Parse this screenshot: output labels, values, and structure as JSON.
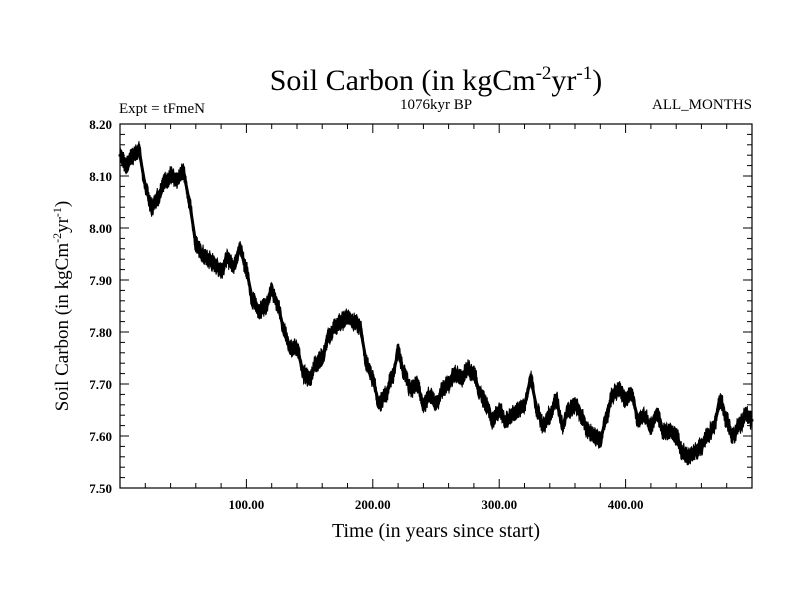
{
  "chart_data": {
    "type": "line",
    "title": {
      "main": "Soil Carbon (in kgCm",
      "sup1": "-2",
      "mid": "yr",
      "sup2": "-1",
      "close": ")"
    },
    "subtitle_left": "Expt = tFmeN",
    "subtitle_center": "1076kyr BP",
    "subtitle_right": "ALL_MONTHS",
    "xlabel": "Time (in years since start)",
    "ylabel": {
      "main": "Soil Carbon (in kgCm",
      "sup1": "-2",
      "mid": "yr",
      "sup2": "-1",
      "close": ")"
    },
    "xlim": [
      0,
      500
    ],
    "ylim": [
      7.5,
      8.2
    ],
    "xticks": [
      100,
      200,
      300,
      400
    ],
    "xtick_labels": [
      "100.00",
      "200.00",
      "300.00",
      "400.00"
    ],
    "yticks": [
      7.5,
      7.6,
      7.7,
      7.8,
      7.9,
      8.0,
      8.1,
      8.2
    ],
    "ytick_labels": [
      "7.50",
      "7.60",
      "7.70",
      "7.80",
      "7.90",
      "8.00",
      "8.10",
      "8.20"
    ],
    "noise_band": 0.012,
    "series": [
      {
        "name": "Soil Carbon",
        "color": "#000000",
        "x": [
          0,
          5,
          10,
          15,
          20,
          25,
          30,
          35,
          40,
          45,
          50,
          55,
          60,
          65,
          70,
          75,
          80,
          85,
          90,
          95,
          100,
          105,
          110,
          115,
          120,
          125,
          130,
          135,
          140,
          145,
          150,
          155,
          160,
          165,
          170,
          175,
          180,
          185,
          190,
          195,
          200,
          205,
          210,
          215,
          220,
          225,
          230,
          235,
          240,
          245,
          250,
          255,
          260,
          265,
          270,
          275,
          280,
          285,
          290,
          295,
          300,
          305,
          310,
          315,
          320,
          325,
          330,
          335,
          340,
          345,
          350,
          355,
          360,
          365,
          370,
          375,
          380,
          385,
          390,
          395,
          400,
          405,
          410,
          415,
          420,
          425,
          430,
          435,
          440,
          445,
          450,
          455,
          460,
          465,
          470,
          475,
          480,
          485,
          490,
          495,
          500
        ],
        "values": [
          8.14,
          8.12,
          8.14,
          8.15,
          8.08,
          8.04,
          8.06,
          8.09,
          8.1,
          8.09,
          8.11,
          8.05,
          7.97,
          7.95,
          7.94,
          7.93,
          7.92,
          7.94,
          7.93,
          7.96,
          7.92,
          7.86,
          7.84,
          7.85,
          7.88,
          7.85,
          7.8,
          7.77,
          7.77,
          7.72,
          7.71,
          7.74,
          7.75,
          7.79,
          7.81,
          7.82,
          7.83,
          7.82,
          7.81,
          7.74,
          7.71,
          7.66,
          7.68,
          7.71,
          7.76,
          7.72,
          7.69,
          7.7,
          7.66,
          7.68,
          7.66,
          7.69,
          7.7,
          7.72,
          7.71,
          7.73,
          7.72,
          7.68,
          7.66,
          7.63,
          7.65,
          7.63,
          7.64,
          7.65,
          7.66,
          7.71,
          7.65,
          7.62,
          7.64,
          7.67,
          7.62,
          7.65,
          7.66,
          7.64,
          7.61,
          7.6,
          7.59,
          7.64,
          7.68,
          7.69,
          7.67,
          7.68,
          7.63,
          7.64,
          7.62,
          7.64,
          7.61,
          7.61,
          7.6,
          7.57,
          7.56,
          7.57,
          7.58,
          7.6,
          7.62,
          7.67,
          7.63,
          7.6,
          7.62,
          7.64,
          7.63
        ]
      }
    ]
  }
}
